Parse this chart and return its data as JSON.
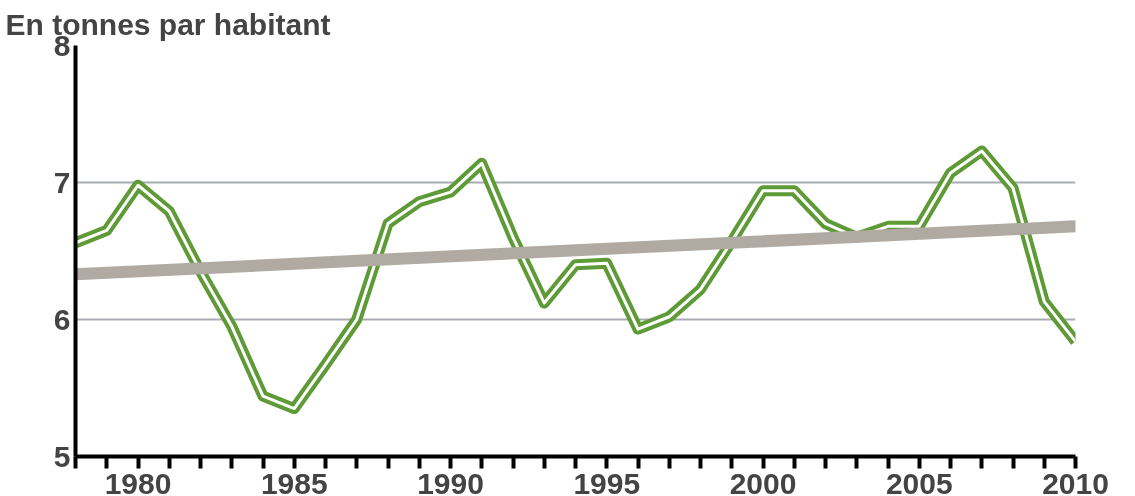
{
  "chart_data": {
    "type": "line",
    "title": "En tonnes par habitant",
    "x": [
      1978,
      1979,
      1980,
      1981,
      1982,
      1983,
      1984,
      1985,
      1986,
      1987,
      1988,
      1989,
      1990,
      1991,
      1992,
      1993,
      1994,
      1995,
      1996,
      1997,
      1998,
      1999,
      2000,
      2001,
      2002,
      2003,
      2004,
      2005,
      2006,
      2007,
      2008,
      2009,
      2010
    ],
    "series": [
      {
        "color": "#5e9a36",
        "values": [
          6.56,
          6.65,
          6.98,
          6.79,
          6.35,
          5.95,
          5.44,
          5.35,
          5.67,
          6.0,
          6.7,
          6.86,
          6.93,
          7.14,
          6.6,
          6.12,
          6.4,
          6.41,
          5.93,
          6.02,
          6.22,
          6.57,
          6.94,
          6.94,
          6.7,
          6.6,
          6.68,
          6.68,
          7.07,
          7.23,
          6.96,
          6.13,
          5.84
        ]
      },
      {
        "type": "line",
        "color": "#b0aaa3",
        "x": [
          1978,
          2010
        ],
        "values": [
          6.33,
          6.68
        ]
      }
    ],
    "xlim": [
      1978,
      2010
    ],
    "xticks": [
      {
        "value": 1978,
        "label": null
      },
      {
        "value": 1979,
        "label": null
      },
      1980,
      {
        "value": 1981,
        "label": null
      },
      {
        "value": 1982,
        "label": null
      },
      {
        "value": 1983,
        "label": null
      },
      {
        "value": 1984,
        "label": null
      },
      1985,
      {
        "value": 1986,
        "label": null
      },
      {
        "value": 1987,
        "label": null
      },
      {
        "value": 1988,
        "label": null
      },
      {
        "value": 1989,
        "label": null
      },
      1990,
      {
        "value": 1991,
        "label": null
      },
      {
        "value": 1992,
        "label": null
      },
      {
        "value": 1993,
        "label": null
      },
      {
        "value": 1994,
        "label": null
      },
      1995,
      {
        "value": 1996,
        "label": null
      },
      {
        "value": 1997,
        "label": null
      },
      {
        "value": 1998,
        "label": null
      },
      {
        "value": 1999,
        "label": null
      },
      2000,
      {
        "value": 2001,
        "label": null
      },
      {
        "value": 2002,
        "label": null
      },
      {
        "value": 2003,
        "label": null
      },
      {
        "value": 2004,
        "label": null
      },
      2005,
      {
        "value": 2006,
        "label": null
      },
      {
        "value": 2007,
        "label": null
      },
      {
        "value": 2008,
        "label": null
      },
      {
        "value": 2009,
        "label": null
      },
      2010
    ],
    "ylim": [
      5,
      8
    ],
    "yticks": [
      5,
      6,
      7,
      8
    ],
    "grid": "y",
    "marker": "none",
    "line_style": "solid"
  }
}
